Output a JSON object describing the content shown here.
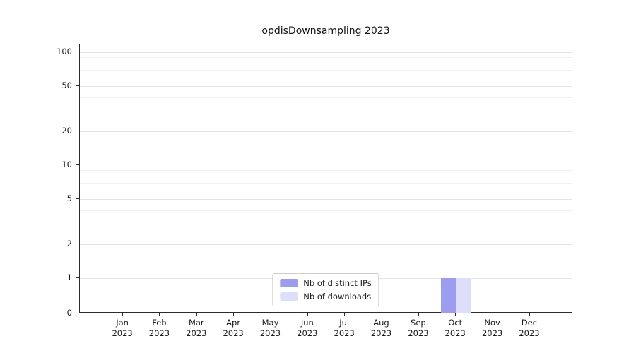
{
  "chart_data": {
    "type": "bar",
    "title": "opdisDownsampling 2023",
    "categories": [
      "Jan",
      "Feb",
      "Mar",
      "Apr",
      "May",
      "Jun",
      "Jul",
      "Aug",
      "Sep",
      "Oct",
      "Nov",
      "Dec"
    ],
    "category_year": "2023",
    "series": [
      {
        "name": "Nb of distinct IPs",
        "color": "#9d9df0",
        "values": [
          0,
          0,
          0,
          0,
          0,
          0,
          0,
          0,
          0,
          1,
          0,
          0
        ]
      },
      {
        "name": "Nb of downloads",
        "color": "#dedefa",
        "values": [
          0,
          0,
          0,
          0,
          0,
          0,
          0,
          0,
          0,
          1,
          0,
          0
        ]
      }
    ],
    "yscale": "symlog",
    "yticks": [
      0,
      1,
      2,
      5,
      10,
      20,
      50,
      100
    ],
    "minor_gridlines": [
      2,
      3,
      4,
      5,
      6,
      7,
      8,
      9,
      20,
      30,
      40,
      50,
      60,
      70,
      80,
      90,
      100
    ],
    "ylim": [
      0,
      120
    ],
    "grid": "horizontal-minor",
    "legend_position": "lower center",
    "axis_color": "#2b2b2b",
    "grid_color": "#efefef"
  }
}
